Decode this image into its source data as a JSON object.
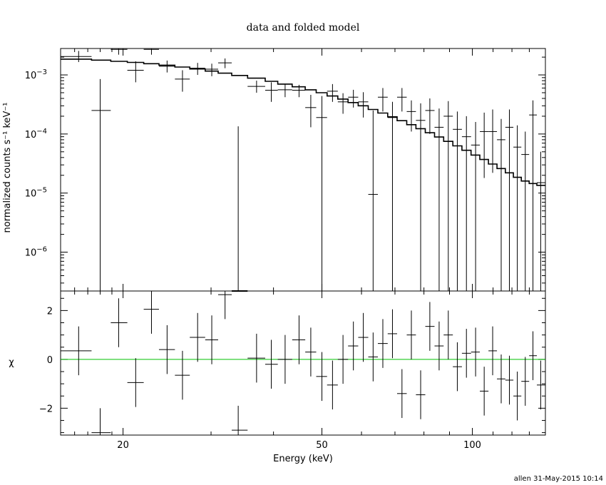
{
  "chart_data": [
    {
      "panel": "spectrum",
      "type": "scatter",
      "title": "data and folded model",
      "xlabel": "Energy (keV)",
      "ylabel": "normalized counts s⁻¹ keV⁻¹",
      "xscale": "log",
      "yscale": "log",
      "xlim": [
        15,
        140
      ],
      "ylim": [
        2.2e-07,
        0.0028
      ],
      "xticks": [
        {
          "value": 20,
          "label": "20"
        },
        {
          "value": 50,
          "label": "50"
        },
        {
          "value": 100,
          "label": "100"
        }
      ],
      "yticks": [
        {
          "value": 0.001,
          "base": "10",
          "exp": "−3"
        },
        {
          "value": 0.0001,
          "base": "10",
          "exp": "−4"
        },
        {
          "value": 1e-05,
          "base": "10",
          "exp": "−5"
        },
        {
          "value": 1e-06,
          "base": "10",
          "exp": "−6"
        }
      ],
      "series": [
        {
          "kind": "data",
          "color": "#000000",
          "points": [
            {
              "x": 16.3,
              "xlo": 15.0,
              "xhi": 17.3,
              "y": 0.00205,
              "ylo": 0.00165,
              "yhi": 0.00255
            },
            {
              "x": 18.0,
              "xlo": 17.3,
              "xhi": 18.9,
              "y": 0.00025,
              "ylo": 2.2e-07,
              "yhi": 0.00085
            },
            {
              "x": 19.6,
              "xlo": 18.9,
              "xhi": 20.4,
              "y": 0.0027,
              "ylo": 0.0022,
              "yhi": 0.0028
            },
            {
              "x": 21.2,
              "xlo": 20.4,
              "xhi": 22.0,
              "y": 0.0012,
              "ylo": 0.00075,
              "yhi": 0.0017
            },
            {
              "x": 22.8,
              "xlo": 22.0,
              "xhi": 23.6,
              "y": 0.0027,
              "ylo": 0.0022,
              "yhi": 0.0028
            },
            {
              "x": 24.5,
              "xlo": 23.6,
              "xhi": 25.4,
              "y": 0.0014,
              "ylo": 0.0011,
              "yhi": 0.00175
            },
            {
              "x": 26.3,
              "xlo": 25.4,
              "xhi": 27.2,
              "y": 0.00085,
              "ylo": 0.00052,
              "yhi": 0.0012
            },
            {
              "x": 28.2,
              "xlo": 27.2,
              "xhi": 29.2,
              "y": 0.0013,
              "ylo": 0.001,
              "yhi": 0.0016
            },
            {
              "x": 30.1,
              "xlo": 29.2,
              "xhi": 31.0,
              "y": 0.00125,
              "ylo": 0.00095,
              "yhi": 0.00155
            },
            {
              "x": 32.0,
              "xlo": 31.0,
              "xhi": 33.0,
              "y": 0.0016,
              "ylo": 0.0013,
              "yhi": 0.0019
            },
            {
              "x": 34.0,
              "xlo": 33.0,
              "xhi": 35.5,
              "y": 2.2e-07,
              "ylo": 2.2e-07,
              "yhi": 0.000135
            },
            {
              "x": 37.0,
              "xlo": 35.5,
              "xhi": 38.5,
              "y": 0.00064,
              "ylo": 0.0005,
              "yhi": 0.0008
            },
            {
              "x": 39.6,
              "xlo": 38.5,
              "xhi": 40.8,
              "y": 0.00055,
              "ylo": 0.00035,
              "yhi": 0.00075
            },
            {
              "x": 42.2,
              "xlo": 40.8,
              "xhi": 43.6,
              "y": 0.00056,
              "ylo": 0.00042,
              "yhi": 0.0007
            },
            {
              "x": 45.0,
              "xlo": 43.6,
              "xhi": 46.3,
              "y": 0.00055,
              "ylo": 0.00042,
              "yhi": 0.00068
            },
            {
              "x": 47.5,
              "xlo": 46.3,
              "xhi": 48.7,
              "y": 0.00028,
              "ylo": 0.00013,
              "yhi": 0.00046
            },
            {
              "x": 50.0,
              "xlo": 48.7,
              "xhi": 51.2,
              "y": 0.00019,
              "ylo": 2.2e-07,
              "yhi": 0.00044
            },
            {
              "x": 52.5,
              "xlo": 51.2,
              "xhi": 53.8,
              "y": 0.00053,
              "ylo": 0.00035,
              "yhi": 0.0007
            },
            {
              "x": 55.1,
              "xlo": 53.8,
              "xhi": 56.4,
              "y": 0.00035,
              "ylo": 0.00022,
              "yhi": 0.00049
            },
            {
              "x": 57.8,
              "xlo": 56.4,
              "xhi": 59.1,
              "y": 0.00042,
              "ylo": 0.00028,
              "yhi": 0.00056
            },
            {
              "x": 60.5,
              "xlo": 59.1,
              "xhi": 61.9,
              "y": 0.00035,
              "ylo": 0.00019,
              "yhi": 0.00051
            },
            {
              "x": 63.3,
              "xlo": 61.9,
              "xhi": 64.7,
              "y": 9.5e-06,
              "ylo": 2.2e-07,
              "yhi": 0.00025
            },
            {
              "x": 66.2,
              "xlo": 64.7,
              "xhi": 67.7,
              "y": 0.00042,
              "ylo": 0.00024,
              "yhi": 0.0006
            },
            {
              "x": 69.2,
              "xlo": 67.7,
              "xhi": 70.7,
              "y": 0.00019,
              "ylo": 2.2e-07,
              "yhi": 0.00035
            },
            {
              "x": 72.3,
              "xlo": 70.7,
              "xhi": 73.9,
              "y": 0.00042,
              "ylo": 0.00024,
              "yhi": 0.0006
            },
            {
              "x": 75.5,
              "xlo": 73.9,
              "xhi": 77.1,
              "y": 0.00024,
              "ylo": 0.00011,
              "yhi": 0.00037
            },
            {
              "x": 78.8,
              "xlo": 77.1,
              "xhi": 80.5,
              "y": 0.00017,
              "ylo": 2.2e-07,
              "yhi": 0.00033
            },
            {
              "x": 82.2,
              "xlo": 80.5,
              "xhi": 84.0,
              "y": 0.00025,
              "ylo": 0.0001,
              "yhi": 0.0004
            },
            {
              "x": 85.8,
              "xlo": 84.0,
              "xhi": 87.6,
              "y": 0.00013,
              "ylo": 2.2e-07,
              "yhi": 0.00027
            },
            {
              "x": 89.5,
              "xlo": 87.6,
              "xhi": 91.4,
              "y": 0.0002,
              "ylo": 2.2e-07,
              "yhi": 0.00036
            },
            {
              "x": 93.3,
              "xlo": 91.4,
              "xhi": 95.3,
              "y": 0.00012,
              "ylo": 2.2e-07,
              "yhi": 0.00024
            },
            {
              "x": 97.3,
              "xlo": 95.3,
              "xhi": 99.4,
              "y": 9e-05,
              "ylo": 2.2e-07,
              "yhi": 0.0002
            },
            {
              "x": 101.5,
              "xlo": 99.4,
              "xhi": 103.5,
              "y": 6.5e-05,
              "ylo": 2.2e-07,
              "yhi": 0.00016
            },
            {
              "x": 105.6,
              "xlo": 103.5,
              "xhi": 107.7,
              "y": 0.00011,
              "ylo": 1.8e-05,
              "yhi": 0.00023
            },
            {
              "x": 109.8,
              "xlo": 107.7,
              "xhi": 112.0,
              "y": 0.00011,
              "ylo": 2.2e-05,
              "yhi": 0.00026
            },
            {
              "x": 114.2,
              "xlo": 112.0,
              "xhi": 116.4,
              "y": 8e-05,
              "ylo": 2.2e-07,
              "yhi": 0.00018
            },
            {
              "x": 118.6,
              "xlo": 116.4,
              "xhi": 120.8,
              "y": 0.00013,
              "ylo": 2.2e-07,
              "yhi": 0.00026
            },
            {
              "x": 123.0,
              "xlo": 120.8,
              "xhi": 125.3,
              "y": 6e-05,
              "ylo": 2.2e-07,
              "yhi": 0.00014
            },
            {
              "x": 127.6,
              "xlo": 125.3,
              "xhi": 129.9,
              "y": 4.5e-05,
              "ylo": 2.2e-07,
              "yhi": 0.00011
            },
            {
              "x": 132.2,
              "xlo": 129.9,
              "xhi": 134.6,
              "y": 0.00021,
              "ylo": 2.2e-07,
              "yhi": 0.00037
            },
            {
              "x": 137.0,
              "xlo": 134.6,
              "xhi": 140.0,
              "y": 1.5e-05,
              "ylo": 2.2e-07,
              "yhi": 5e-05
            }
          ]
        },
        {
          "kind": "folded-model",
          "color": "#000000",
          "step": [
            [
              15.0,
              0.00185
            ],
            [
              17.3,
              0.00178
            ],
            [
              18.9,
              0.0017
            ],
            [
              20.4,
              0.00163
            ],
            [
              22.0,
              0.00155
            ],
            [
              23.6,
              0.00146
            ],
            [
              25.4,
              0.00136
            ],
            [
              27.2,
              0.00126
            ],
            [
              29.2,
              0.00116
            ],
            [
              31.0,
              0.00107
            ],
            [
              33.0,
              0.00098
            ],
            [
              35.5,
              0.00088
            ],
            [
              38.5,
              0.00078
            ],
            [
              40.8,
              0.0007
            ],
            [
              43.6,
              0.00063
            ],
            [
              46.3,
              0.00056
            ],
            [
              48.7,
              0.0005
            ],
            [
              51.2,
              0.00044
            ],
            [
              53.8,
              0.00039
            ],
            [
              56.4,
              0.00034
            ],
            [
              59.1,
              0.0003
            ],
            [
              61.9,
              0.00026
            ],
            [
              64.7,
              0.000226
            ],
            [
              67.7,
              0.000195
            ],
            [
              70.7,
              0.000168
            ],
            [
              73.9,
              0.000144
            ],
            [
              77.1,
              0.000123
            ],
            [
              80.5,
              0.000105
            ],
            [
              84.0,
              8.9e-05
            ],
            [
              87.6,
              7.5e-05
            ],
            [
              91.4,
              6.3e-05
            ],
            [
              95.3,
              5.3e-05
            ],
            [
              99.4,
              4.4e-05
            ],
            [
              103.5,
              3.7e-05
            ],
            [
              107.7,
              3.1e-05
            ],
            [
              112.0,
              2.6e-05
            ],
            [
              116.4,
              2.2e-05
            ],
            [
              120.8,
              1.85e-05
            ],
            [
              125.3,
              1.6e-05
            ],
            [
              129.9,
              1.45e-05
            ],
            [
              134.6,
              1.35e-05
            ],
            [
              140.0,
              1.35e-05
            ]
          ]
        }
      ]
    },
    {
      "panel": "residuals",
      "type": "scatter",
      "xlabel": "Energy (keV)",
      "ylabel": "χ",
      "xscale": "log",
      "xlim": [
        15,
        140
      ],
      "ylim": [
        -3.1,
        2.8
      ],
      "xticks": [
        {
          "value": 20,
          "label": "20"
        },
        {
          "value": 50,
          "label": "50"
        },
        {
          "value": 100,
          "label": "100"
        }
      ],
      "yticks": [
        {
          "value": 2,
          "label": "2"
        },
        {
          "value": 0,
          "label": "0"
        },
        {
          "value": -2,
          "label": "−2"
        }
      ],
      "zero_line_color": "#00c000",
      "points": [
        {
          "x": 16.3,
          "xlo": 15.0,
          "xhi": 17.3,
          "y": 0.35,
          "err": 1.0
        },
        {
          "x": 18.0,
          "xlo": 17.3,
          "xhi": 18.9,
          "y": -3.0,
          "err": 1.0
        },
        {
          "x": 19.6,
          "xlo": 18.9,
          "xhi": 20.4,
          "y": 1.5,
          "err": 1.0
        },
        {
          "x": 21.2,
          "xlo": 20.4,
          "xhi": 22.0,
          "y": -0.95,
          "err": 1.0
        },
        {
          "x": 22.8,
          "xlo": 22.0,
          "xhi": 23.6,
          "y": 2.05,
          "err": 1.0
        },
        {
          "x": 24.5,
          "xlo": 23.6,
          "xhi": 25.4,
          "y": 0.4,
          "err": 1.0
        },
        {
          "x": 26.3,
          "xlo": 25.4,
          "xhi": 27.2,
          "y": -0.65,
          "err": 1.0
        },
        {
          "x": 28.2,
          "xlo": 27.2,
          "xhi": 29.2,
          "y": 0.9,
          "err": 1.0
        },
        {
          "x": 30.1,
          "xlo": 29.2,
          "xhi": 31.0,
          "y": 0.8,
          "err": 1.0
        },
        {
          "x": 32.0,
          "xlo": 31.0,
          "xhi": 33.0,
          "y": 2.65,
          "err": 1.0
        },
        {
          "x": 34.0,
          "xlo": 33.0,
          "xhi": 35.5,
          "y": -2.9,
          "err": 1.0
        },
        {
          "x": 37.0,
          "xlo": 35.5,
          "xhi": 38.5,
          "y": 0.05,
          "err": 1.0
        },
        {
          "x": 39.6,
          "xlo": 38.5,
          "xhi": 40.8,
          "y": -0.2,
          "err": 1.0
        },
        {
          "x": 42.2,
          "xlo": 40.8,
          "xhi": 43.6,
          "y": 0.0,
          "err": 1.0
        },
        {
          "x": 45.0,
          "xlo": 43.6,
          "xhi": 46.3,
          "y": 0.8,
          "err": 1.0
        },
        {
          "x": 47.5,
          "xlo": 46.3,
          "xhi": 48.7,
          "y": 0.3,
          "err": 1.0
        },
        {
          "x": 50.0,
          "xlo": 48.7,
          "xhi": 51.2,
          "y": -0.7,
          "err": 1.0
        },
        {
          "x": 52.5,
          "xlo": 51.2,
          "xhi": 53.8,
          "y": -1.05,
          "err": 1.0
        },
        {
          "x": 55.1,
          "xlo": 53.8,
          "xhi": 56.4,
          "y": 0.0,
          "err": 1.0
        },
        {
          "x": 57.8,
          "xlo": 56.4,
          "xhi": 59.1,
          "y": 0.55,
          "err": 1.0
        },
        {
          "x": 60.5,
          "xlo": 59.1,
          "xhi": 61.9,
          "y": 0.9,
          "err": 1.0
        },
        {
          "x": 63.3,
          "xlo": 61.9,
          "xhi": 64.7,
          "y": 0.1,
          "err": 1.0
        },
        {
          "x": 66.2,
          "xlo": 64.7,
          "xhi": 67.7,
          "y": 0.65,
          "err": 1.0
        },
        {
          "x": 69.2,
          "xlo": 67.7,
          "xhi": 70.7,
          "y": 1.05,
          "err": 1.0
        },
        {
          "x": 72.3,
          "xlo": 70.7,
          "xhi": 73.9,
          "y": -1.4,
          "err": 1.0
        },
        {
          "x": 75.5,
          "xlo": 73.9,
          "xhi": 77.1,
          "y": 1.0,
          "err": 1.0
        },
        {
          "x": 78.8,
          "xlo": 77.1,
          "xhi": 80.5,
          "y": -1.45,
          "err": 1.0
        },
        {
          "x": 82.2,
          "xlo": 80.5,
          "xhi": 84.0,
          "y": 1.35,
          "err": 1.0
        },
        {
          "x": 85.8,
          "xlo": 84.0,
          "xhi": 87.6,
          "y": 0.55,
          "err": 1.0
        },
        {
          "x": 89.5,
          "xlo": 87.6,
          "xhi": 91.4,
          "y": 1.0,
          "err": 1.0
        },
        {
          "x": 93.3,
          "xlo": 91.4,
          "xhi": 95.3,
          "y": -0.3,
          "err": 1.0
        },
        {
          "x": 97.3,
          "xlo": 95.3,
          "xhi": 99.4,
          "y": 0.25,
          "err": 1.0
        },
        {
          "x": 101.5,
          "xlo": 99.4,
          "xhi": 103.5,
          "y": 0.3,
          "err": 1.0
        },
        {
          "x": 105.6,
          "xlo": 103.5,
          "xhi": 107.7,
          "y": -1.3,
          "err": 1.0
        },
        {
          "x": 109.8,
          "xlo": 107.7,
          "xhi": 112.0,
          "y": 0.35,
          "err": 1.0
        },
        {
          "x": 114.2,
          "xlo": 112.0,
          "xhi": 116.4,
          "y": -0.8,
          "err": 1.0
        },
        {
          "x": 118.6,
          "xlo": 116.4,
          "xhi": 120.8,
          "y": -0.85,
          "err": 1.0
        },
        {
          "x": 123.0,
          "xlo": 120.8,
          "xhi": 125.3,
          "y": -1.5,
          "err": 1.0
        },
        {
          "x": 127.6,
          "xlo": 125.3,
          "xhi": 129.9,
          "y": -0.9,
          "err": 1.0
        },
        {
          "x": 132.2,
          "xlo": 129.9,
          "xhi": 134.6,
          "y": 0.15,
          "err": 1.0
        },
        {
          "x": 137.0,
          "xlo": 134.6,
          "xhi": 140.0,
          "y": -1.05,
          "err": 1.0
        }
      ]
    }
  ],
  "footer": "allen 31-May-2015 10:14"
}
